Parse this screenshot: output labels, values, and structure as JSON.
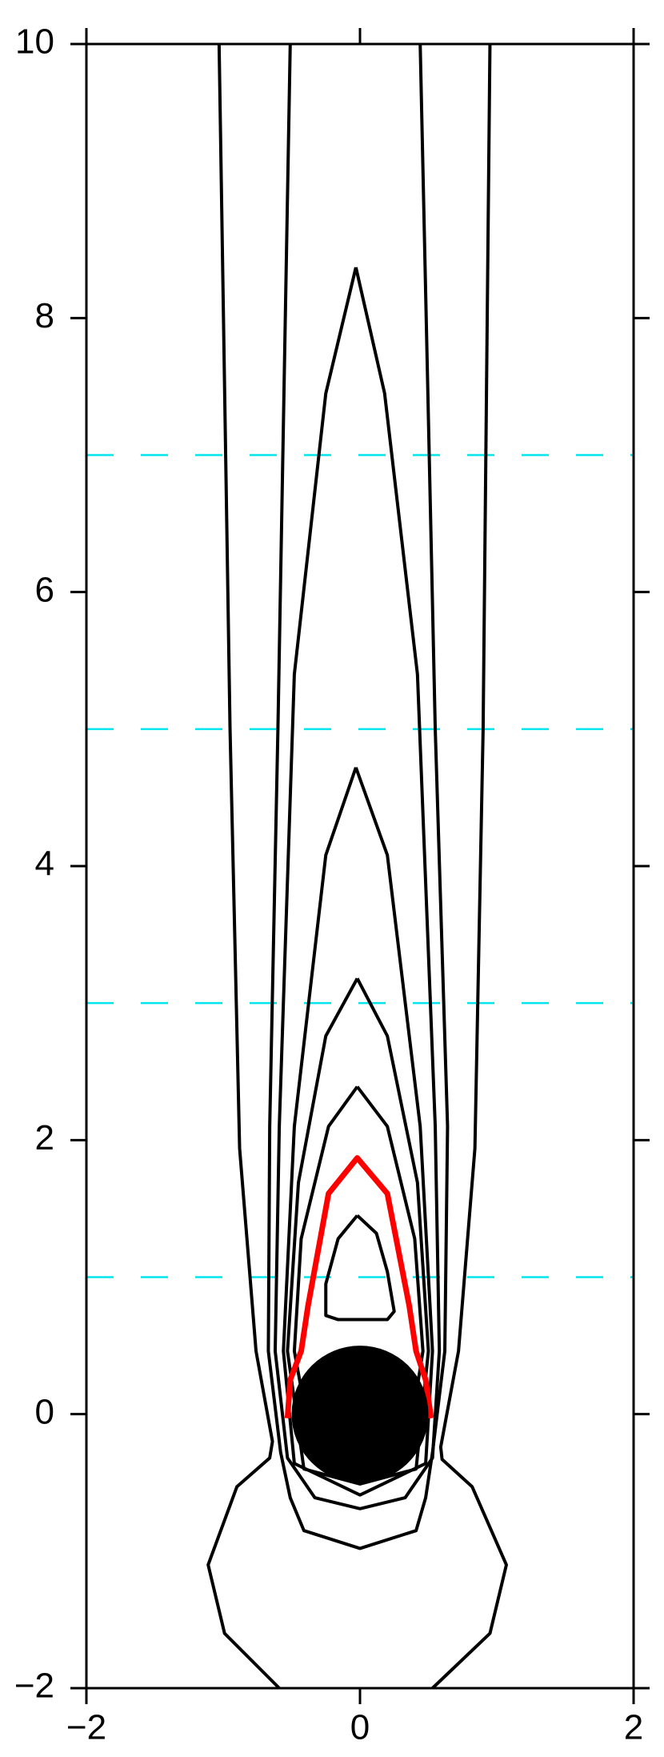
{
  "chart_data": {
    "type": "contour",
    "xlim": [
      -2,
      2
    ],
    "ylim": [
      -2,
      10
    ],
    "xticks": [
      {
        "value": -2,
        "label": "−2"
      },
      0,
      2
    ],
    "yticks": [
      {
        "value": -2,
        "label": "−2"
      },
      0,
      2,
      4,
      6,
      8,
      10
    ],
    "reference_lines": {
      "values": [
        1,
        3,
        5,
        7
      ],
      "color": "#00e5ee"
    },
    "disk": {
      "x": 0,
      "y": 0,
      "r": 0.5,
      "color": "#000000"
    },
    "series": [
      {
        "color": "#000000",
        "x": [
          -1.03,
          -0.95,
          -0.88,
          -0.76,
          -0.64,
          -0.66,
          -0.9,
          -1.11,
          -0.99,
          -0.59
        ],
        "y": [
          10,
          5,
          1.94,
          0.46,
          -0.2,
          -0.32,
          -0.53,
          -1.1,
          -1.6,
          -2
        ]
      },
      {
        "color": "#000000",
        "x": [
          0.95,
          0.9,
          0.84,
          0.72,
          0.59,
          0.6,
          0.82,
          1.07,
          0.95,
          0.53
        ],
        "y": [
          10,
          5,
          1.94,
          0.46,
          -0.24,
          -0.33,
          -0.53,
          -1.1,
          -1.6,
          -2
        ]
      },
      {
        "color": "#000000",
        "x": [
          -0.51,
          -0.6,
          -0.66,
          -0.67,
          -0.58,
          -0.51,
          -0.41,
          0,
          0.41,
          0.48,
          0.53,
          0.62,
          0.64,
          0.55,
          0.44
        ],
        "y": [
          10,
          5,
          2.1,
          0.46,
          -0.28,
          -0.61,
          -0.85,
          -0.98,
          -0.85,
          -0.61,
          -0.28,
          0.46,
          2.1,
          5,
          10
        ]
      },
      {
        "color": "#000000",
        "x": [
          -0.03,
          -0.25,
          -0.48,
          -0.59,
          -0.62,
          -0.53,
          -0.33,
          0,
          0.33,
          0.53,
          0.58,
          0.55,
          0.42,
          0.18,
          -0.03
        ],
        "y": [
          8.37,
          7.45,
          5.4,
          2.1,
          0.46,
          -0.32,
          -0.61,
          -0.69,
          -0.61,
          -0.32,
          0.46,
          2.1,
          5.4,
          7.45,
          8.37
        ]
      },
      {
        "color": "#000000",
        "x": [
          -0.03,
          -0.25,
          -0.48,
          -0.56,
          -0.48,
          0,
          0.48,
          0.53,
          0.44,
          0.2,
          -0.03
        ],
        "y": [
          4.72,
          4.08,
          2.1,
          0.46,
          -0.36,
          -0.59,
          -0.36,
          0.46,
          2.1,
          4.08,
          4.72
        ]
      },
      {
        "color": "#000000",
        "x": [
          -0.02,
          -0.25,
          -0.45,
          -0.53,
          -0.41,
          0,
          0.41,
          0.5,
          0.42,
          0.2,
          -0.02
        ],
        "y": [
          3.18,
          2.76,
          1.69,
          0.46,
          -0.4,
          -0.51,
          -0.4,
          0.46,
          1.69,
          2.76,
          3.18
        ]
      },
      {
        "color": "#000000",
        "x": [
          -0.02,
          -0.23,
          -0.43,
          -0.48,
          -0.33,
          0,
          0.33,
          0.46,
          0.4,
          0.2,
          -0.02
        ],
        "y": [
          2.39,
          2.1,
          1.28,
          0.46,
          -0.36,
          -0.43,
          -0.36,
          0.46,
          1.28,
          2.1,
          2.39
        ]
      },
      {
        "color": "#ff0000",
        "x": [
          -0.53,
          -0.51,
          -0.43,
          -0.38,
          -0.23,
          -0.02,
          0.2,
          0.36,
          0.41,
          0.48,
          0.52
        ],
        "y": [
          -0.03,
          0.25,
          0.46,
          0.79,
          1.61,
          1.87,
          1.61,
          0.79,
          0.46,
          0.25,
          -0.03
        ]
      },
      {
        "color": "#000000",
        "x": [
          -0.02,
          -0.16,
          -0.25,
          -0.25,
          -0.16,
          0.2,
          0.25,
          0.2,
          0.12,
          -0.02
        ],
        "y": [
          1.45,
          1.28,
          0.95,
          0.72,
          0.69,
          0.69,
          0.75,
          1.04,
          1.32,
          1.45
        ]
      }
    ]
  }
}
